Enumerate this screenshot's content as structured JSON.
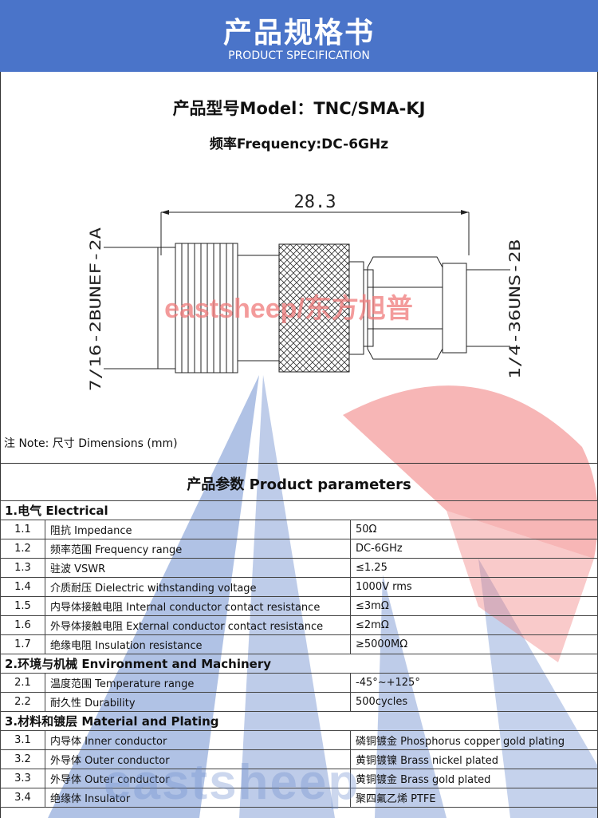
{
  "header": {
    "title": "产品规格书",
    "subtitle": "PRODUCT SPECIFICATION"
  },
  "model_line": "产品型号Model：TNC/SMA-KJ",
  "frequency_line": "频率Frequency:DC-6GHz",
  "drawing": {
    "dimension_length": "28.3",
    "left_thread": "7/16-2BUNEF-2A",
    "right_thread": "1/4-36UNS-2B"
  },
  "watermark": {
    "text_mid": "eastsheep/东方旭普",
    "text_bottom": "eastsheep"
  },
  "colors": {
    "header_bg": "#4a74c9",
    "watermark_red": "#f07a7a",
    "watermark_blue": "#6f8fcf"
  },
  "note": "注 Note:  尺寸 Dimensions (mm)",
  "params_title": "产品参数 Product parameters",
  "sections": [
    {
      "title": "1.电气 Electrical",
      "rows": [
        {
          "num": "1.1",
          "name": "阻抗 Impedance",
          "value": "50Ω"
        },
        {
          "num": "1.2",
          "name": "频率范围 Frequency range",
          "value": "DC-6GHz"
        },
        {
          "num": "1.3",
          "name": "驻波 VSWR",
          "value": "≤1.25"
        },
        {
          "num": "1.4",
          "name": "介质耐压 Dielectric withstanding voltage",
          "value": "1000V rms"
        },
        {
          "num": "1.5",
          "name": "内导体接触电阻 Internal conductor contact resistance",
          "value": "≤3mΩ"
        },
        {
          "num": "1.6",
          "name": "外导体接触电阻 External conductor contact resistance",
          "value": "≤2mΩ"
        },
        {
          "num": "1.7",
          "name": "绝缘电阻  Insulation resistance",
          "value": "≥5000MΩ"
        }
      ]
    },
    {
      "title": "2.环境与机械 Environment and Machinery",
      "rows": [
        {
          "num": "2.1",
          "name": "温度范围 Temperature range",
          "value": "-45°~+125°"
        },
        {
          "num": "2.2",
          "name": "耐久性 Durability",
          "value": "500cycles"
        }
      ]
    },
    {
      "title": "3.材料和镀层 Material and Plating",
      "rows": [
        {
          "num": "3.1",
          "name": "内导体 Inner conductor",
          "value": "磷铜镀金 Phosphorus copper gold plating"
        },
        {
          "num": "3.2",
          "name": "外导体 Outer conductor",
          "value": "黄铜镀镍 Brass nickel plated"
        },
        {
          "num": "3.3",
          "name": "外导体 Outer conductor",
          "value": "黄铜镀金 Brass gold plated"
        },
        {
          "num": "3.4",
          "name": "绝缘体 Insulator",
          "value": "聚四氟乙烯 PTFE"
        }
      ]
    }
  ]
}
